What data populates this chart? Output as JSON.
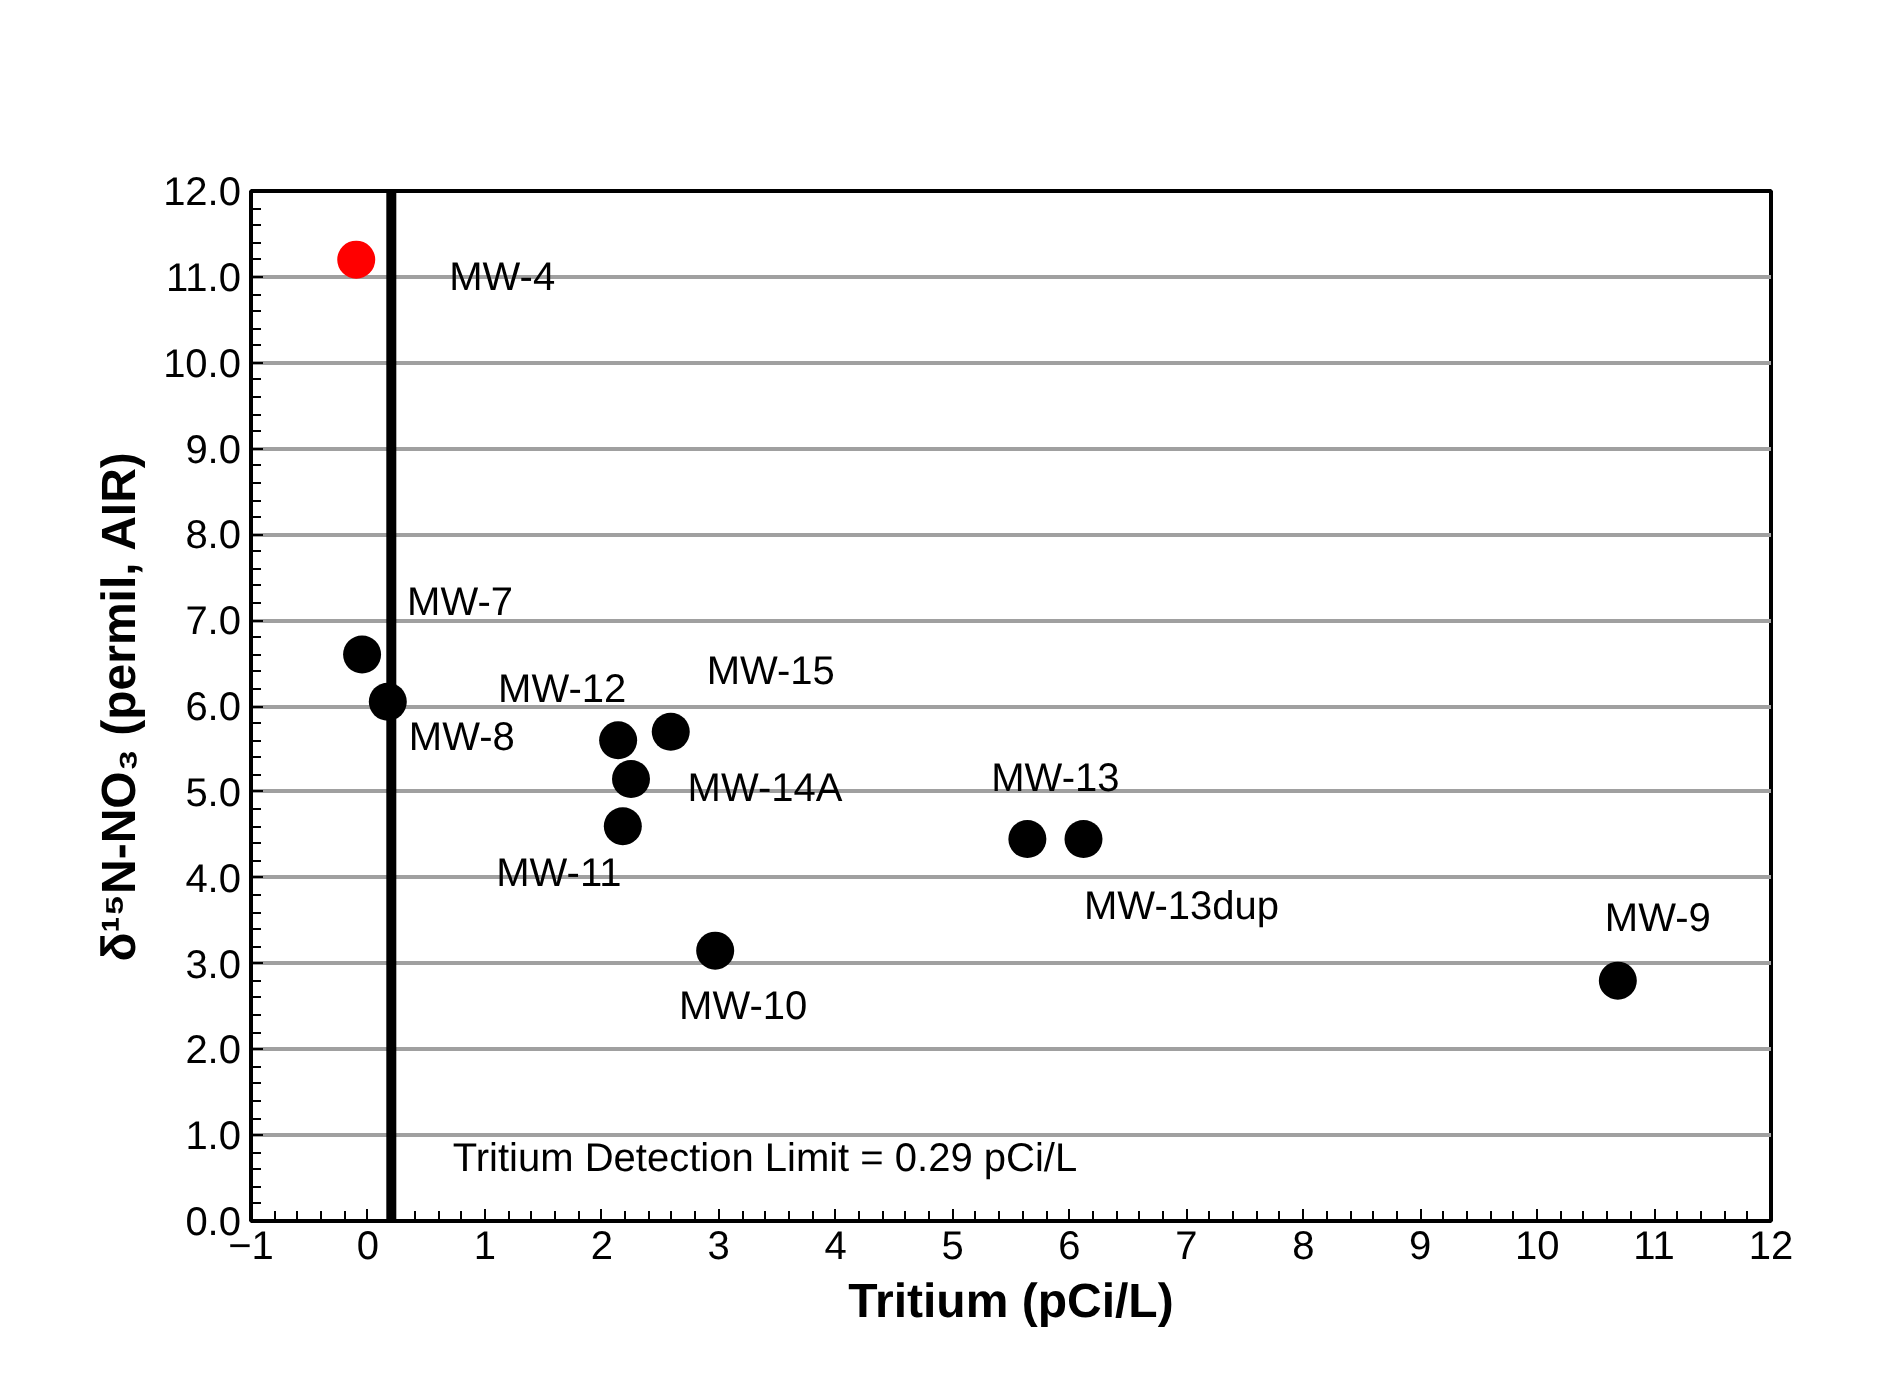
{
  "chart_data": {
    "type": "scatter",
    "xlabel": "Tritium (pCi/L)",
    "ylabel": "δ¹⁵N-NO₃ (permil, AIR)",
    "x": [
      -0.1,
      -0.05,
      0.17,
      2.14,
      2.59,
      2.25,
      2.18,
      2.97,
      5.64,
      6.12,
      10.69
    ],
    "values": [
      11.2,
      6.6,
      6.05,
      5.6,
      5.7,
      5.15,
      4.6,
      3.15,
      4.45,
      4.45,
      2.8
    ],
    "colors": [
      "#ff0000",
      "#000000",
      "#000000",
      "#000000",
      "#000000",
      "#000000",
      "#000000",
      "#000000",
      "#000000",
      "#000000",
      "#000000"
    ],
    "marker": "circle",
    "xlim": [
      -1,
      12
    ],
    "xticks": [
      -1,
      0,
      1,
      2,
      3,
      4,
      5,
      6,
      7,
      8,
      9,
      10,
      11,
      12
    ],
    "ylim": [
      0,
      12
    ],
    "yticks": [
      {
        "value": 0,
        "label": "0.0"
      },
      {
        "value": 1,
        "label": "1.0"
      },
      {
        "value": 2,
        "label": "2.0"
      },
      {
        "value": 3,
        "label": "3.0"
      },
      {
        "value": 4,
        "label": "4.0"
      },
      {
        "value": 5,
        "label": "5.0"
      },
      {
        "value": 6,
        "label": "6.0"
      },
      {
        "value": 7,
        "label": "7.0"
      },
      {
        "value": 8,
        "label": "8.0"
      },
      {
        "value": 9,
        "label": "9.0"
      },
      {
        "value": 10,
        "label": "10.0"
      },
      {
        "value": 11,
        "label": "11.0"
      },
      {
        "value": 12,
        "label": "12.0"
      }
    ],
    "grid": "y",
    "ref_lines": [
      {
        "axis": "x",
        "value": 0.2,
        "label": null,
        "color": "#000000"
      }
    ],
    "annotations": [
      {
        "text": "MW-4",
        "x": -0.1,
        "y": 11.2
      },
      {
        "text": "MW-7",
        "x": -0.05,
        "y": 6.6
      },
      {
        "text": "MW-8",
        "x": 0.17,
        "y": 6.05
      },
      {
        "text": "MW-12",
        "x": 2.14,
        "y": 5.6
      },
      {
        "text": "MW-15",
        "x": 2.59,
        "y": 5.7
      },
      {
        "text": "MW-14A",
        "x": 2.25,
        "y": 5.15
      },
      {
        "text": "MW-11",
        "x": 2.18,
        "y": 4.6
      },
      {
        "text": "MW-10",
        "x": 2.97,
        "y": 3.15
      },
      {
        "text": "MW-13",
        "x": 5.64,
        "y": 4.45
      },
      {
        "text": "MW-13dup",
        "x": 6.12,
        "y": 4.45
      },
      {
        "text": "MW-9",
        "x": 10.69,
        "y": 2.8
      },
      "Tritium Detection Limit = 0.29 pCi/L"
    ]
  }
}
